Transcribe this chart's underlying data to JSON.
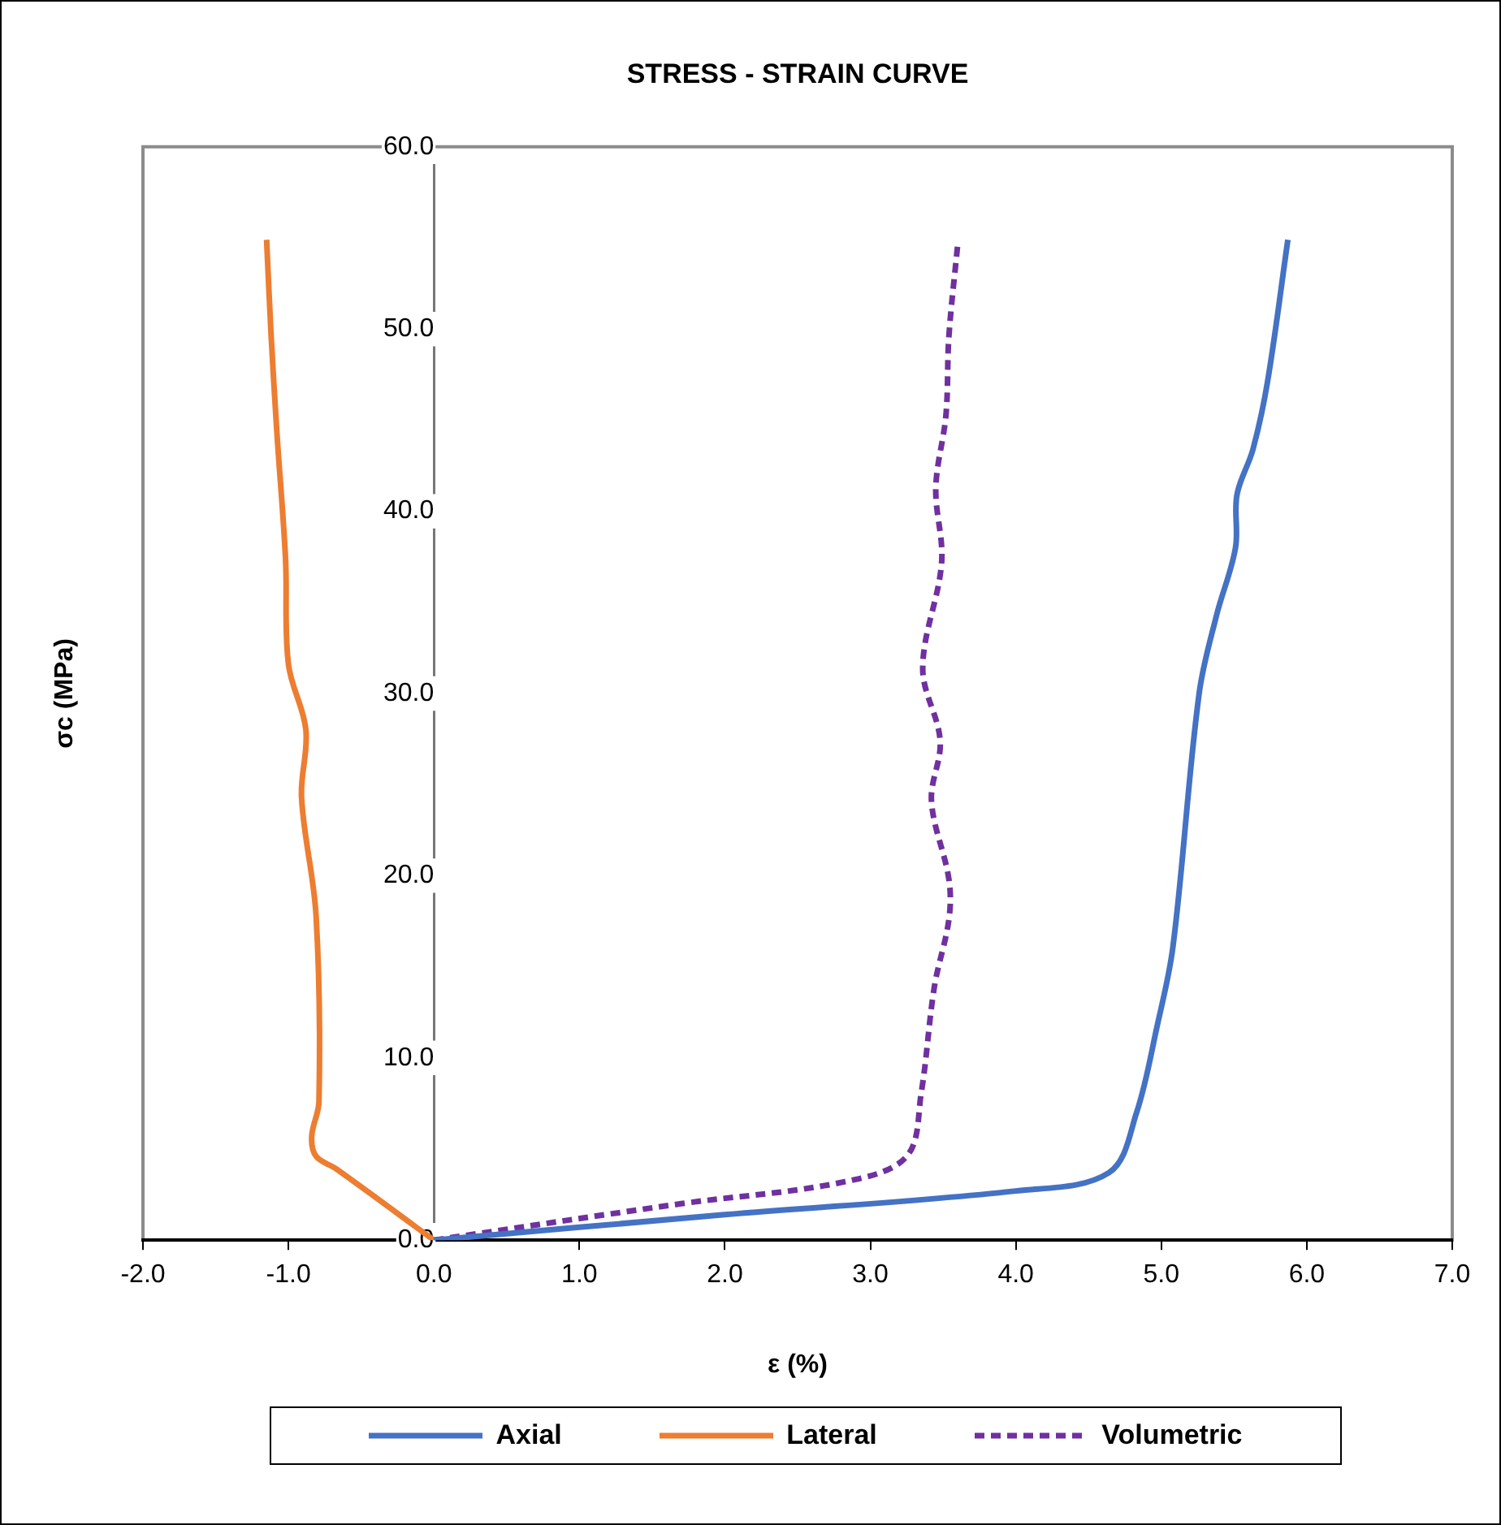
{
  "chart_data": {
    "type": "line",
    "title": "STRESS - STRAIN CURVE",
    "xlabel": "ε (%)",
    "ylabel": "σc (MPa)",
    "xlim": [
      -2,
      7
    ],
    "xticks": [
      {
        "value": -2,
        "label": "-2.0"
      },
      {
        "value": -1,
        "label": "-1.0"
      },
      {
        "value": 0,
        "label": "0.0"
      },
      {
        "value": 1,
        "label": "1.0"
      },
      {
        "value": 2,
        "label": "2.0"
      },
      {
        "value": 3,
        "label": "3.0"
      },
      {
        "value": 4,
        "label": "4.0"
      },
      {
        "value": 5,
        "label": "5.0"
      },
      {
        "value": 6,
        "label": "6.0"
      },
      {
        "value": 7,
        "label": "7.0"
      }
    ],
    "ylim": [
      0,
      60
    ],
    "yticks": [
      {
        "value": 0,
        "label": "0.0"
      },
      {
        "value": 10,
        "label": "10.0"
      },
      {
        "value": 20,
        "label": "20.0"
      },
      {
        "value": 30,
        "label": "30.0"
      },
      {
        "value": 40,
        "label": "40.0"
      },
      {
        "value": 50,
        "label": "50.0"
      },
      {
        "value": 60,
        "label": "60.0"
      }
    ],
    "grid": false,
    "legend": "bottom",
    "marker": "none",
    "series": [
      {
        "name": "Axial",
        "color": "#4472c4",
        "line_style": "solid",
        "x": [
          0,
          2.0,
          4.0,
          4.64,
          4.83,
          4.97,
          5.08,
          5.26,
          5.38,
          5.51,
          5.52,
          5.63,
          5.73,
          5.87
        ],
        "values": [
          0,
          1.4,
          2.7,
          3.7,
          7.0,
          11.7,
          16.1,
          30.0,
          34.3,
          38.0,
          40.9,
          43.4,
          47.1,
          54.9
        ]
      },
      {
        "name": "Lateral",
        "color": "#ed7d31",
        "line_style": "solid",
        "x": [
          0,
          -0.67,
          -0.81,
          -0.84,
          -0.79,
          -0.81,
          -0.91,
          -0.88,
          -1.0,
          -1.02,
          -1.08,
          -1.12,
          -1.15
        ],
        "values": [
          0,
          3.9,
          4.6,
          5.7,
          7.6,
          17.8,
          24.3,
          28.0,
          31.6,
          37.4,
          44.4,
          49.8,
          54.9
        ]
      },
      {
        "name": "Volumetric",
        "color": "#7030a0",
        "line_style": "dashed",
        "x": [
          0,
          1.7,
          2.82,
          3.25,
          3.35,
          3.44,
          3.54,
          3.54,
          3.42,
          3.48,
          3.36,
          3.49,
          3.45,
          3.52,
          3.54,
          3.6
        ],
        "values": [
          0,
          2.0,
          3.2,
          4.6,
          8.1,
          13.9,
          17.6,
          19.8,
          24.1,
          27.4,
          31.4,
          37.2,
          41.3,
          45.3,
          49.6,
          54.6
        ]
      }
    ]
  }
}
